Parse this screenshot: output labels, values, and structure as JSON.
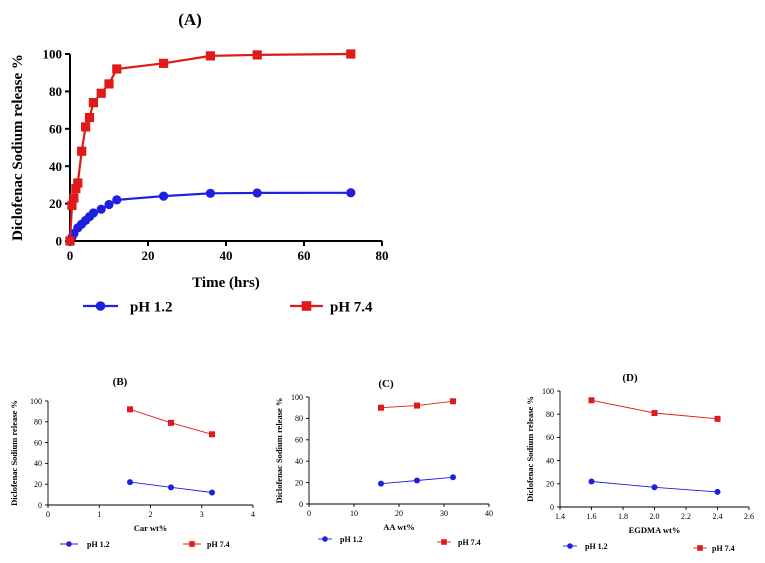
{
  "chart_data": [
    {
      "panel": "(A)",
      "type": "line",
      "xlabel": "Time (hrs)",
      "ylabel": "Diclofenac Sodium release %",
      "xlim": [
        0,
        80
      ],
      "ylim": [
        0,
        100
      ],
      "xticks": [
        "0",
        "20",
        "40",
        "60",
        "80"
      ],
      "yticks": [
        "0",
        "20",
        "40",
        "60",
        "80",
        "100"
      ],
      "grid": false,
      "legend": "bottom",
      "series": [
        {
          "name": "pH 1.2",
          "color": "#1f1fe0",
          "marker": "circle",
          "x": [
            0,
            0.5,
            1,
            2,
            3,
            4,
            5,
            6,
            8,
            10,
            12,
            24,
            36,
            48,
            72
          ],
          "y": [
            0,
            2,
            4,
            7,
            9,
            11,
            13,
            15,
            17,
            19.5,
            22,
            24,
            25.5,
            25.7,
            25.8
          ]
        },
        {
          "name": "pH 7.4",
          "color": "#e01a1a",
          "marker": "square",
          "x": [
            0,
            0.5,
            1,
            1.5,
            2,
            3,
            4,
            5,
            6,
            8,
            10,
            12,
            24,
            36,
            48,
            72
          ],
          "y": [
            0,
            19,
            23,
            28,
            31,
            48,
            61,
            66,
            74,
            79,
            84,
            92,
            95,
            99,
            99.5,
            100
          ]
        }
      ]
    },
    {
      "panel": "(B)",
      "type": "line",
      "xlabel": "Car wt%",
      "ylabel": "Diclofenac Sodium release %",
      "xlim": [
        0,
        4
      ],
      "ylim": [
        0,
        100
      ],
      "xticks": [
        "0",
        "1",
        "2",
        "3",
        "4"
      ],
      "yticks": [
        "0",
        "20",
        "40",
        "60",
        "80",
        "100"
      ],
      "legend": "bottom",
      "series": [
        {
          "name": "pH 1.2",
          "color": "#1f1fe0",
          "marker": "circle",
          "x": [
            1.6,
            2.4,
            3.2
          ],
          "y": [
            22,
            17,
            12
          ]
        },
        {
          "name": "pH 7.4",
          "color": "#e01a1a",
          "marker": "square",
          "x": [
            1.6,
            2.4,
            3.2
          ],
          "y": [
            92,
            79,
            68
          ]
        }
      ]
    },
    {
      "panel": "(C)",
      "type": "line",
      "xlabel": "AA wt%",
      "ylabel": "Diclofenac Sodium release %",
      "xlim": [
        0,
        40
      ],
      "ylim": [
        0,
        100
      ],
      "xticks": [
        "0",
        "10",
        "20",
        "30",
        "40"
      ],
      "yticks": [
        "0",
        "20",
        "40",
        "60",
        "80",
        "100"
      ],
      "legend": "bottom",
      "series": [
        {
          "name": "pH 1.2",
          "color": "#1f1fe0",
          "marker": "circle",
          "x": [
            16,
            24,
            32
          ],
          "y": [
            19,
            22,
            25
          ]
        },
        {
          "name": "pH 7.4",
          "color": "#e01a1a",
          "marker": "square",
          "x": [
            16,
            24,
            32
          ],
          "y": [
            90,
            92,
            96
          ]
        }
      ]
    },
    {
      "panel": "(D)",
      "type": "line",
      "xlabel": "EGDMA wt%",
      "ylabel": "Diclofenac Sodium release %",
      "xlim": [
        1.4,
        2.6
      ],
      "ylim": [
        0,
        100
      ],
      "xticks": [
        "1.4",
        "1.6",
        "1.8",
        "2.0",
        "2.2",
        "2.4",
        "2.6"
      ],
      "yticks": [
        "0",
        "20",
        "40",
        "60",
        "80",
        "100"
      ],
      "legend": "bottom",
      "series": [
        {
          "name": "pH 1.2",
          "color": "#1f1fe0",
          "marker": "circle",
          "x": [
            1.6,
            2.0,
            2.4
          ],
          "y": [
            22,
            17,
            13
          ]
        },
        {
          "name": "pH 7.4",
          "color": "#e01a1a",
          "marker": "square",
          "x": [
            1.6,
            2.0,
            2.4
          ],
          "y": [
            92,
            81,
            76
          ]
        }
      ]
    }
  ]
}
